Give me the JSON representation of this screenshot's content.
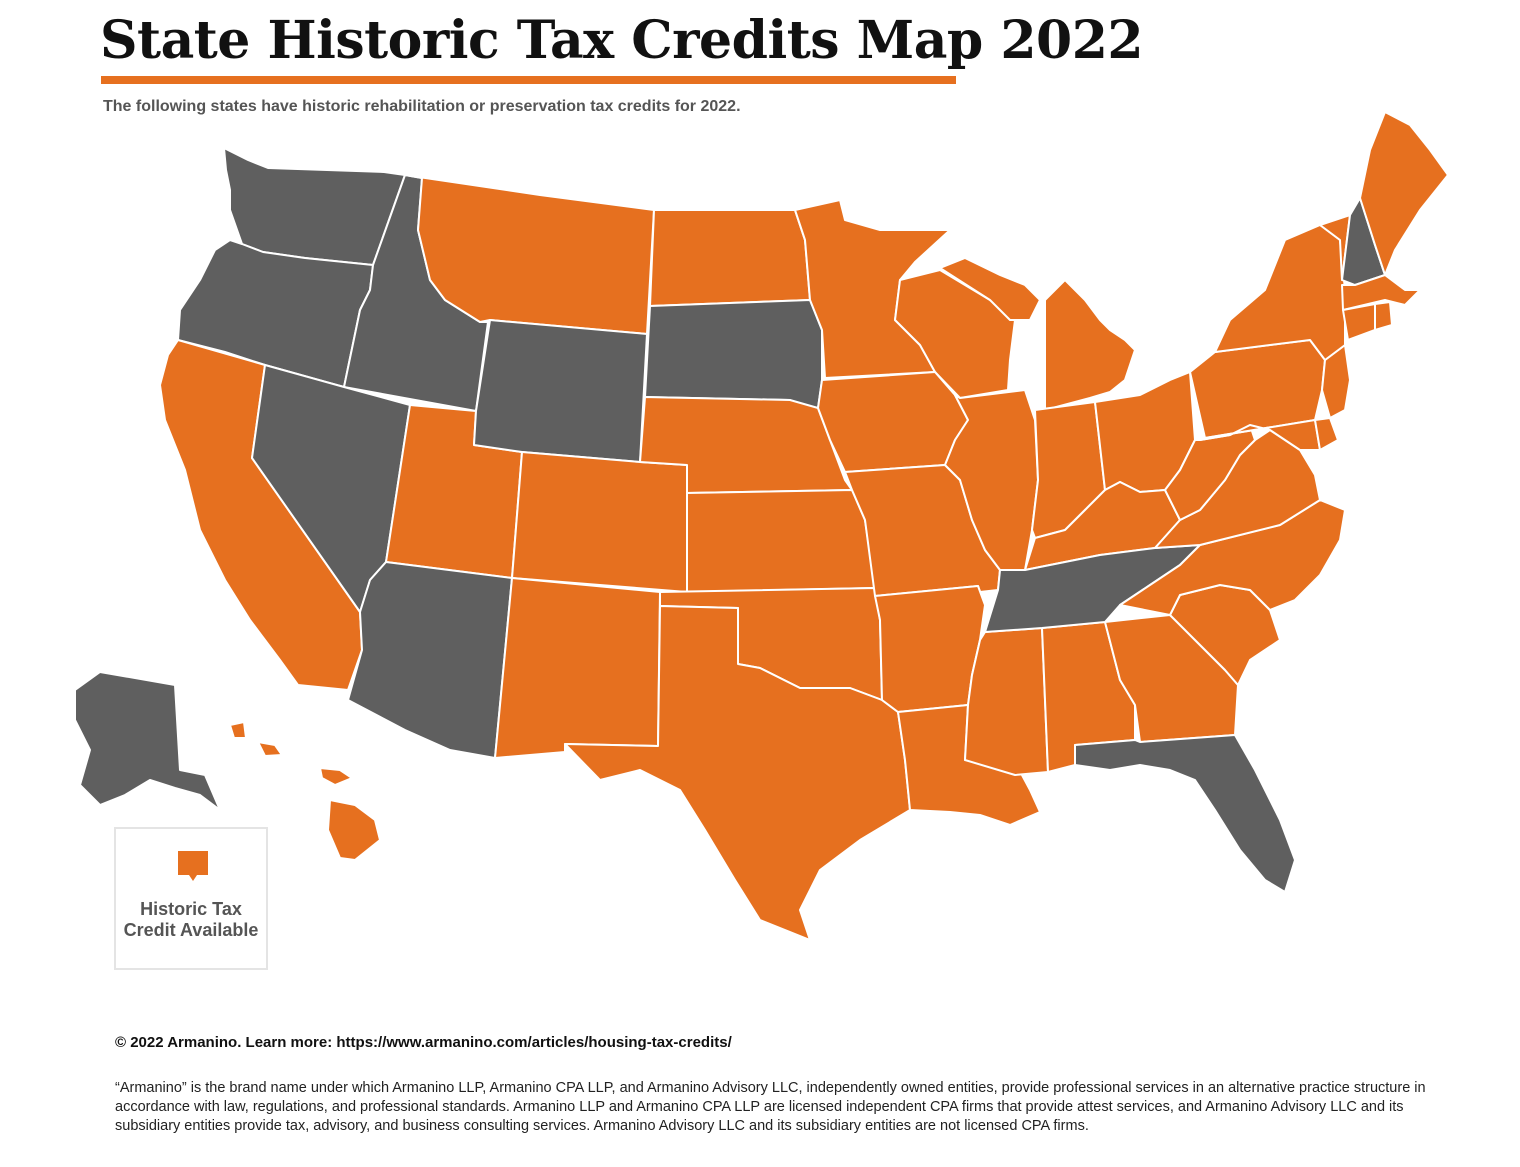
{
  "title": "State Historic Tax Credits Map 2022",
  "subtitle": "The following states have historic rehabilitation or preservation tax credits for 2022.",
  "colors": {
    "credit_available": "#e6701f",
    "no_credit": "#5f5f5f",
    "border": "#ffffff"
  },
  "legend": {
    "label_line1": "Historic Tax",
    "label_line2": "Credit Available"
  },
  "states_with_credit": [
    "California",
    "Utah",
    "Montana",
    "North Dakota",
    "Minnesota",
    "Wisconsin",
    "Michigan",
    "New York",
    "Vermont",
    "Maine",
    "Massachusetts",
    "Connecticut",
    "Rhode Island",
    "New Jersey",
    "Pennsylvania",
    "Delaware",
    "Maryland",
    "Ohio",
    "Indiana",
    "Illinois",
    "Iowa",
    "Nebraska",
    "Colorado",
    "Kansas",
    "Missouri",
    "Kentucky",
    "West Virginia",
    "Virginia",
    "North Carolina",
    "South Carolina",
    "Georgia",
    "Alabama",
    "Mississippi",
    "Louisiana",
    "Arkansas",
    "Oklahoma",
    "Texas",
    "New Mexico",
    "Hawaii"
  ],
  "states_without_credit": [
    "Washington",
    "Oregon",
    "Idaho",
    "Nevada",
    "Wyoming",
    "South Dakota",
    "Arizona",
    "Tennessee",
    "Florida",
    "New Hampshire",
    "Alaska"
  ],
  "footer": {
    "copyright": "© 2022 Armanino. Learn more: https://www.armanino.com/articles/housing-tax-credits/",
    "disclaimer": "“Armanino” is the brand name under which Armanino LLP, Armanino CPA LLP, and Armanino Advisory LLC, independently owned entities, provide professional services in an alternative practice structure in accordance with law, regulations, and professional standards. Armanino LLP and Armanino CPA LLP are licensed independent CPA firms that provide attest services, and Armanino Advisory LLC and its subsidiary entities provide tax, advisory, and business consulting services. Armanino Advisory LLC and its subsidiary entities are not licensed CPA firms."
  }
}
